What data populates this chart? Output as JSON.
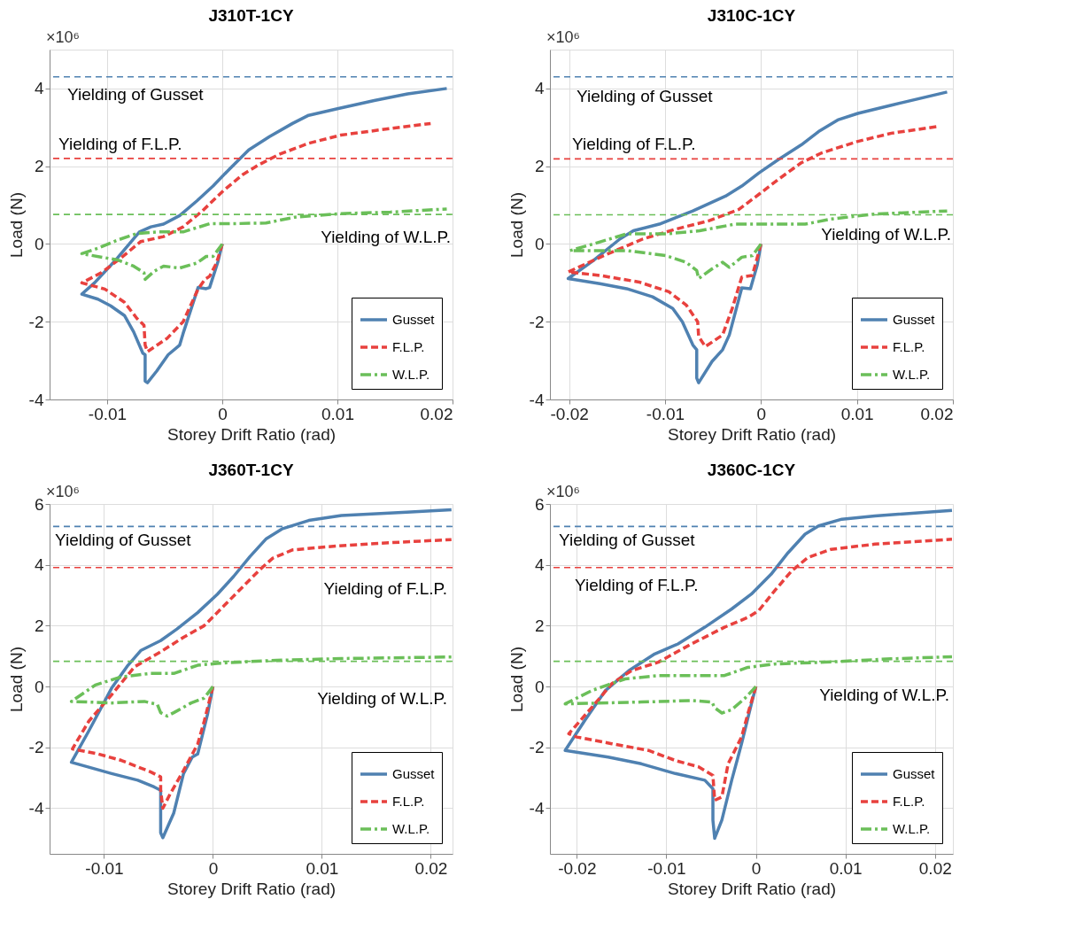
{
  "chart_data": [
    {
      "type": "line",
      "title": "J310T-1CY",
      "xlabel": "Storey Drift Ratio (rad)",
      "ylabel": "Load (N)",
      "annotations": [
        "×10⁶"
      ],
      "xlim": [
        -0.015,
        0.02
      ],
      "xticks": [
        -0.01,
        0,
        0.01,
        0.02
      ],
      "ylim": [
        -4,
        5
      ],
      "yticks": [
        -4,
        -2,
        0,
        2,
        4
      ],
      "grid": true,
      "legend": "bottom right",
      "series": [
        {
          "name": "Gusset",
          "color": "#4f81b1",
          "line_style": "solid",
          "x": [
            0,
            -0.00037,
            -0.0011,
            -0.0014,
            -0.0021,
            -0.0034,
            -0.0037,
            -0.0047,
            -0.0057,
            -0.0065,
            -0.0067,
            -0.0067,
            -0.0069,
            -0.0077,
            -0.0085,
            -0.0097,
            -0.0108,
            -0.0122,
            -0.0111,
            -0.0091,
            -0.0072,
            -0.0062,
            -0.0051,
            -0.0037,
            -0.0022,
            -0.0008,
            0.0006,
            0.0023,
            0.0041,
            0.0061,
            0.0075,
            0.01,
            0.0132,
            0.0161,
            0.0195
          ],
          "values": [
            0,
            -0.45,
            -1.12,
            -1.15,
            -1.12,
            -2.3,
            -2.6,
            -2.85,
            -3.27,
            -3.57,
            -3.53,
            -2.85,
            -2.81,
            -2.26,
            -1.84,
            -1.59,
            -1.42,
            -1.29,
            -1.0,
            -0.36,
            0.31,
            0.44,
            0.51,
            0.73,
            1.11,
            1.49,
            1.92,
            2.42,
            2.76,
            3.1,
            3.31,
            3.48,
            3.69,
            3.86,
            4.0
          ]
        },
        {
          "name": "F.L.P.",
          "color": "#e8413e",
          "line_style": "dashed",
          "x": [
            0,
            -0.0005,
            -0.0011,
            -0.0015,
            -0.0021,
            -0.0034,
            -0.0048,
            -0.0065,
            -0.0067,
            -0.0068,
            -0.0074,
            -0.0085,
            -0.0102,
            -0.0122,
            -0.0105,
            -0.0088,
            -0.0071,
            -0.0051,
            -0.0034,
            -0.0017,
            0.0001,
            0.0018,
            0.0032,
            0.0049,
            0.0075,
            0.0103,
            0.0146,
            0.0181
          ],
          "values": [
            0,
            -0.49,
            -0.83,
            -0.91,
            -1.16,
            -2.0,
            -2.43,
            -2.77,
            -2.6,
            -2.09,
            -1.92,
            -1.5,
            -1.16,
            -1.0,
            -0.74,
            -0.36,
            0.06,
            0.19,
            0.44,
            0.86,
            1.37,
            1.79,
            2.04,
            2.3,
            2.59,
            2.8,
            2.97,
            3.1
          ]
        },
        {
          "name": "W.L.P.",
          "color": "#6bbf59",
          "line_style": "dashdot",
          "x": [
            0,
            -0.0008,
            -0.0014,
            -0.0022,
            -0.0037,
            -0.0051,
            -0.0059,
            -0.0067,
            -0.0068,
            -0.0077,
            -0.0091,
            -0.0122,
            -0.0108,
            -0.0091,
            -0.0074,
            -0.0057,
            -0.0034,
            -0.0011,
            0.0006,
            0.0038,
            0.0063,
            0.0103,
            0.0146,
            0.0195
          ],
          "values": [
            0,
            -0.32,
            -0.32,
            -0.49,
            -0.62,
            -0.57,
            -0.7,
            -0.91,
            -0.74,
            -0.57,
            -0.41,
            -0.25,
            -0.11,
            0.1,
            0.27,
            0.31,
            0.31,
            0.52,
            0.52,
            0.54,
            0.69,
            0.78,
            0.82,
            0.9
          ]
        }
      ],
      "ref_lines": [
        {
          "axis": "y",
          "value": 4.3,
          "label": "Yielding of Gusset",
          "color": "#4f81b1",
          "line_style": "dashed"
        },
        {
          "axis": "y",
          "value": 2.2,
          "label": "Yielding of F.L.P.",
          "color": "#e8413e",
          "line_style": "dashed"
        },
        {
          "axis": "y",
          "value": 0.76,
          "label": "Yielding of W.L.P.",
          "color": "#6bbf59",
          "line_style": "dashed"
        }
      ]
    },
    {
      "type": "line",
      "title": "J310C-1CY",
      "xlabel": "Storey Drift Ratio (rad)",
      "ylabel": "Load (N)",
      "annotations": [
        "×10⁶"
      ],
      "xlim": [
        -0.022,
        0.02
      ],
      "xticks": [
        -0.02,
        -0.01,
        0,
        0.01,
        0.02
      ],
      "ylim": [
        -4,
        5
      ],
      "yticks": [
        -4,
        -2,
        0,
        2,
        4
      ],
      "grid": true,
      "legend": "bottom right",
      "series": [
        {
          "name": "Gusset",
          "color": "#4f81b1",
          "line_style": "solid",
          "x": [
            0,
            -0.0004,
            -0.0011,
            -0.002,
            -0.0033,
            -0.004,
            -0.0051,
            -0.0065,
            -0.0067,
            -0.0067,
            -0.0071,
            -0.0082,
            -0.0092,
            -0.0113,
            -0.014,
            -0.0168,
            -0.0201,
            -0.0175,
            -0.0147,
            -0.0133,
            -0.0106,
            -0.0071,
            -0.0037,
            -0.002,
            -0.0002,
            0.0018,
            0.0042,
            0.006,
            0.008,
            0.0101,
            0.0136,
            0.0194
          ],
          "values": [
            0,
            -0.55,
            -1.15,
            -1.13,
            -2.34,
            -2.72,
            -3.02,
            -3.57,
            -3.45,
            -2.72,
            -2.6,
            -2.0,
            -1.66,
            -1.36,
            -1.15,
            -1.02,
            -0.89,
            -0.43,
            0.13,
            0.34,
            0.51,
            0.85,
            1.23,
            1.49,
            1.83,
            2.17,
            2.55,
            2.89,
            3.19,
            3.36,
            3.57,
            3.91
          ]
        },
        {
          "name": "F.L.P.",
          "color": "#e8413e",
          "line_style": "dashed",
          "x": [
            0,
            -0.0009,
            -0.002,
            -0.003,
            -0.004,
            -0.0058,
            -0.0065,
            -0.0066,
            -0.0078,
            -0.0096,
            -0.0127,
            -0.0168,
            -0.0201,
            -0.0164,
            -0.0123,
            -0.0089,
            -0.0054,
            -0.0023,
            -0.0002,
            0.0018,
            0.0042,
            0.0063,
            0.0101,
            0.0136,
            0.0184
          ],
          "values": [
            0,
            -0.81,
            -0.85,
            -1.66,
            -2.34,
            -2.64,
            -2.38,
            -2.0,
            -1.57,
            -1.23,
            -0.98,
            -0.81,
            -0.72,
            -0.3,
            0.13,
            0.38,
            0.6,
            0.89,
            1.28,
            1.66,
            2.09,
            2.34,
            2.64,
            2.85,
            3.02
          ]
        },
        {
          "name": "W.L.P.",
          "color": "#6bbf59",
          "line_style": "dashdot",
          "x": [
            0,
            -0.0009,
            -0.002,
            -0.0033,
            -0.004,
            -0.0051,
            -0.0065,
            -0.0067,
            -0.0078,
            -0.0099,
            -0.014,
            -0.0199,
            -0.0175,
            -0.014,
            -0.0099,
            -0.0064,
            -0.0027,
            0.0015,
            0.0046,
            0.0073,
            0.0118,
            0.0194
          ],
          "values": [
            0,
            -0.3,
            -0.34,
            -0.6,
            -0.47,
            -0.64,
            -0.89,
            -0.68,
            -0.47,
            -0.3,
            -0.17,
            -0.17,
            0,
            0.26,
            0.26,
            0.34,
            0.51,
            0.51,
            0.51,
            0.64,
            0.77,
            0.85
          ]
        }
      ],
      "ref_lines": [
        {
          "axis": "y",
          "value": 4.3,
          "label": "Yielding of Gusset",
          "color": "#4f81b1",
          "line_style": "dashed"
        },
        {
          "axis": "y",
          "value": 2.19,
          "label": "Yielding of F.L.P.",
          "color": "#e8413e",
          "line_style": "dashed"
        },
        {
          "axis": "y",
          "value": 0.75,
          "label": "Yielding of W.L.P.",
          "color": "#6bbf59",
          "line_style": "dashed"
        }
      ]
    },
    {
      "type": "line",
      "title": "J360T-1CY",
      "xlabel": "Storey Drift Ratio (rad)",
      "ylabel": "Load (N)",
      "annotations": [
        "×10⁶"
      ],
      "xlim": [
        -0.015,
        0.022
      ],
      "xticks": [
        -0.01,
        0,
        0.01,
        0.02
      ],
      "ylim": [
        -5.5,
        6
      ],
      "yticks": [
        -4,
        -2,
        0,
        2,
        4,
        6
      ],
      "grid": true,
      "legend": "bottom right",
      "series": [
        {
          "name": "Gusset",
          "color": "#4f81b1",
          "line_style": "solid",
          "x": [
            0,
            -0.0005,
            -0.0014,
            -0.0019,
            -0.0027,
            -0.0036,
            -0.0046,
            -0.0048,
            -0.0048,
            -0.0054,
            -0.0069,
            -0.0093,
            -0.0114,
            -0.013,
            -0.0114,
            -0.0093,
            -0.0078,
            -0.0066,
            -0.0048,
            -0.0033,
            -0.0014,
            0.0004,
            0.0019,
            0.0034,
            0.0049,
            0.0064,
            0.0088,
            0.0118,
            0.0178,
            0.0219
          ],
          "values": [
            0,
            -0.92,
            -2.22,
            -2.32,
            -2.86,
            -4.16,
            -4.97,
            -4.81,
            -3.41,
            -3.3,
            -3.08,
            -2.86,
            -2.65,
            -2.49,
            -1.46,
            -0.05,
            0.7,
            1.19,
            1.51,
            1.89,
            2.43,
            3.03,
            3.62,
            4.27,
            4.86,
            5.19,
            5.46,
            5.62,
            5.73,
            5.81
          ]
        },
        {
          "name": "F.L.P.",
          "color": "#e8413e",
          "line_style": "dashed",
          "x": [
            0,
            -0.0008,
            -0.0014,
            -0.0027,
            -0.0039,
            -0.0046,
            -0.0048,
            -0.0048,
            -0.0057,
            -0.0084,
            -0.0105,
            -0.0129,
            -0.0114,
            -0.0093,
            -0.0072,
            -0.0048,
            -0.0027,
            -0.0008,
            0.001,
            0.0028,
            0.0043,
            0.0055,
            0.0073,
            0.0103,
            0.0148,
            0.0219
          ],
          "values": [
            0,
            -1.14,
            -1.89,
            -2.76,
            -3.51,
            -4.0,
            -3.41,
            -2.97,
            -2.81,
            -2.43,
            -2.22,
            -2.05,
            -1.14,
            -0.27,
            0.65,
            1.14,
            1.62,
            2.0,
            2.65,
            3.3,
            3.84,
            4.22,
            4.49,
            4.59,
            4.7,
            4.83
          ]
        },
        {
          "name": "W.L.P.",
          "color": "#6bbf59",
          "line_style": "dashdot",
          "x": [
            0,
            -0.0008,
            -0.002,
            -0.0036,
            -0.0042,
            -0.0048,
            -0.0051,
            -0.0063,
            -0.0093,
            -0.013,
            -0.0108,
            -0.0084,
            -0.0057,
            -0.0036,
            -0.0014,
            0.0004,
            0.0028,
            0.0058,
            0.0118,
            0.0219
          ],
          "values": [
            0,
            -0.38,
            -0.54,
            -0.86,
            -0.97,
            -0.86,
            -0.59,
            -0.49,
            -0.54,
            -0.49,
            0.05,
            0.32,
            0.43,
            0.43,
            0.7,
            0.76,
            0.81,
            0.86,
            0.92,
            0.97
          ]
        }
      ],
      "ref_lines": [
        {
          "axis": "y",
          "value": 5.26,
          "label": "Yielding of Gusset",
          "color": "#4f81b1",
          "line_style": "dashed"
        },
        {
          "axis": "y",
          "value": 3.91,
          "label": "Yielding of F.L.P.",
          "color": "#e8413e",
          "line_style": "dashed"
        },
        {
          "axis": "y",
          "value": 0.83,
          "label": "Yielding of W.L.P.",
          "color": "#6bbf59",
          "line_style": "dashed"
        }
      ]
    },
    {
      "type": "line",
      "title": "J360C-1CY",
      "xlabel": "Storey Drift Ratio (rad)",
      "ylabel": "Load (N)",
      "annotations": [
        "×10⁶"
      ],
      "xlim": [
        -0.023,
        0.022
      ],
      "xticks": [
        -0.02,
        -0.01,
        0,
        0.01,
        0.02
      ],
      "ylim": [
        -5.5,
        6
      ],
      "yticks": [
        -4,
        -2,
        0,
        2,
        4,
        6
      ],
      "grid": true,
      "legend": "bottom right",
      "series": [
        {
          "name": "Gusset",
          "color": "#4f81b1",
          "line_style": "solid",
          "x": [
            0,
            -0.0005,
            -0.0016,
            -0.002,
            -0.0027,
            -0.0038,
            -0.0046,
            -0.0048,
            -0.0048,
            -0.0057,
            -0.009,
            -0.0128,
            -0.0165,
            -0.0213,
            -0.0191,
            -0.0168,
            -0.0142,
            -0.0113,
            -0.0087,
            -0.0057,
            -0.0027,
            -0.0005,
            0.0017,
            0.0036,
            0.0055,
            0.007,
            0.0096,
            0.0133,
            0.0219
          ],
          "values": [
            0,
            -0.57,
            -1.88,
            -2.32,
            -3.08,
            -4.39,
            -4.99,
            -4.39,
            -3.36,
            -3.08,
            -2.86,
            -2.54,
            -2.32,
            -2.1,
            -1.11,
            -0.13,
            0.52,
            1.07,
            1.4,
            1.95,
            2.55,
            3.04,
            3.69,
            4.4,
            5.01,
            5.28,
            5.5,
            5.61,
            5.79
          ]
        },
        {
          "name": "F.L.P.",
          "color": "#e8413e",
          "line_style": "dashed",
          "x": [
            0,
            -0.0009,
            -0.0016,
            -0.0031,
            -0.0038,
            -0.0046,
            -0.0048,
            -0.0064,
            -0.009,
            -0.012,
            -0.0161,
            -0.02,
            -0.0209,
            -0.0183,
            -0.0161,
            -0.0139,
            -0.0109,
            -0.0072,
            -0.0035,
            -0.0009,
            0.0003,
            0.0021,
            0.004,
            0.0058,
            0.0084,
            0.0133,
            0.0219
          ],
          "values": [
            0,
            -0.9,
            -1.66,
            -2.54,
            -3.63,
            -3.74,
            -2.92,
            -2.64,
            -2.43,
            -2.1,
            -1.88,
            -1.66,
            -1.55,
            -0.68,
            0.09,
            0.52,
            0.8,
            1.4,
            1.95,
            2.27,
            2.49,
            3.15,
            3.8,
            4.24,
            4.51,
            4.68,
            4.84
          ]
        },
        {
          "name": "W.L.P.",
          "color": "#6bbf59",
          "line_style": "dashdot",
          "x": [
            0,
            -0.0012,
            -0.0027,
            -0.0038,
            -0.0046,
            -0.0049,
            -0.0072,
            -0.0128,
            -0.0213,
            -0.0183,
            -0.0146,
            -0.0109,
            -0.0035,
            -0.0009,
            0.0021,
            0.0077,
            0.0151,
            0.0219
          ],
          "values": [
            0,
            -0.38,
            -0.76,
            -0.87,
            -0.7,
            -0.51,
            -0.46,
            -0.51,
            -0.57,
            -0.13,
            0.25,
            0.36,
            0.36,
            0.63,
            0.74,
            0.8,
            0.91,
            0.98
          ]
        }
      ],
      "ref_lines": [
        {
          "axis": "y",
          "value": 5.26,
          "label": "Yielding of Gusset",
          "color": "#4f81b1",
          "line_style": "dashed"
        },
        {
          "axis": "y",
          "value": 3.91,
          "label": "Yielding of F.L.P.",
          "color": "#e8413e",
          "line_style": "dashed"
        },
        {
          "axis": "y",
          "value": 0.83,
          "label": "Yielding of W.L.P.",
          "color": "#6bbf59",
          "line_style": "dashed"
        }
      ]
    }
  ]
}
